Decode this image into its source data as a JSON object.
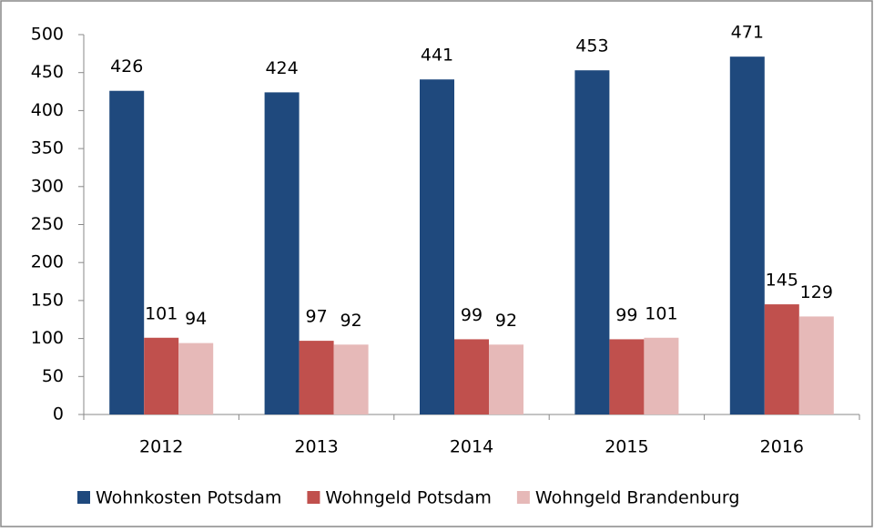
{
  "chart_data": {
    "type": "bar",
    "categories": [
      "2012",
      "2013",
      "2014",
      "2015",
      "2016"
    ],
    "series": [
      {
        "name": "Wohnkosten Potsdam",
        "color": "#1f497d",
        "values": [
          426,
          424,
          441,
          453,
          471
        ]
      },
      {
        "name": "Wohngeld Potsdam",
        "color": "#c0504d",
        "values": [
          101,
          97,
          99,
          99,
          145
        ]
      },
      {
        "name": "Wohngeld Brandenburg",
        "color": "#e6b9b8",
        "values": [
          94,
          92,
          92,
          101,
          129
        ]
      }
    ],
    "ylim": [
      0,
      500
    ],
    "yticks": [
      0,
      50,
      100,
      150,
      200,
      250,
      300,
      350,
      400,
      450,
      500
    ],
    "grid": false,
    "legend": "bottom"
  }
}
